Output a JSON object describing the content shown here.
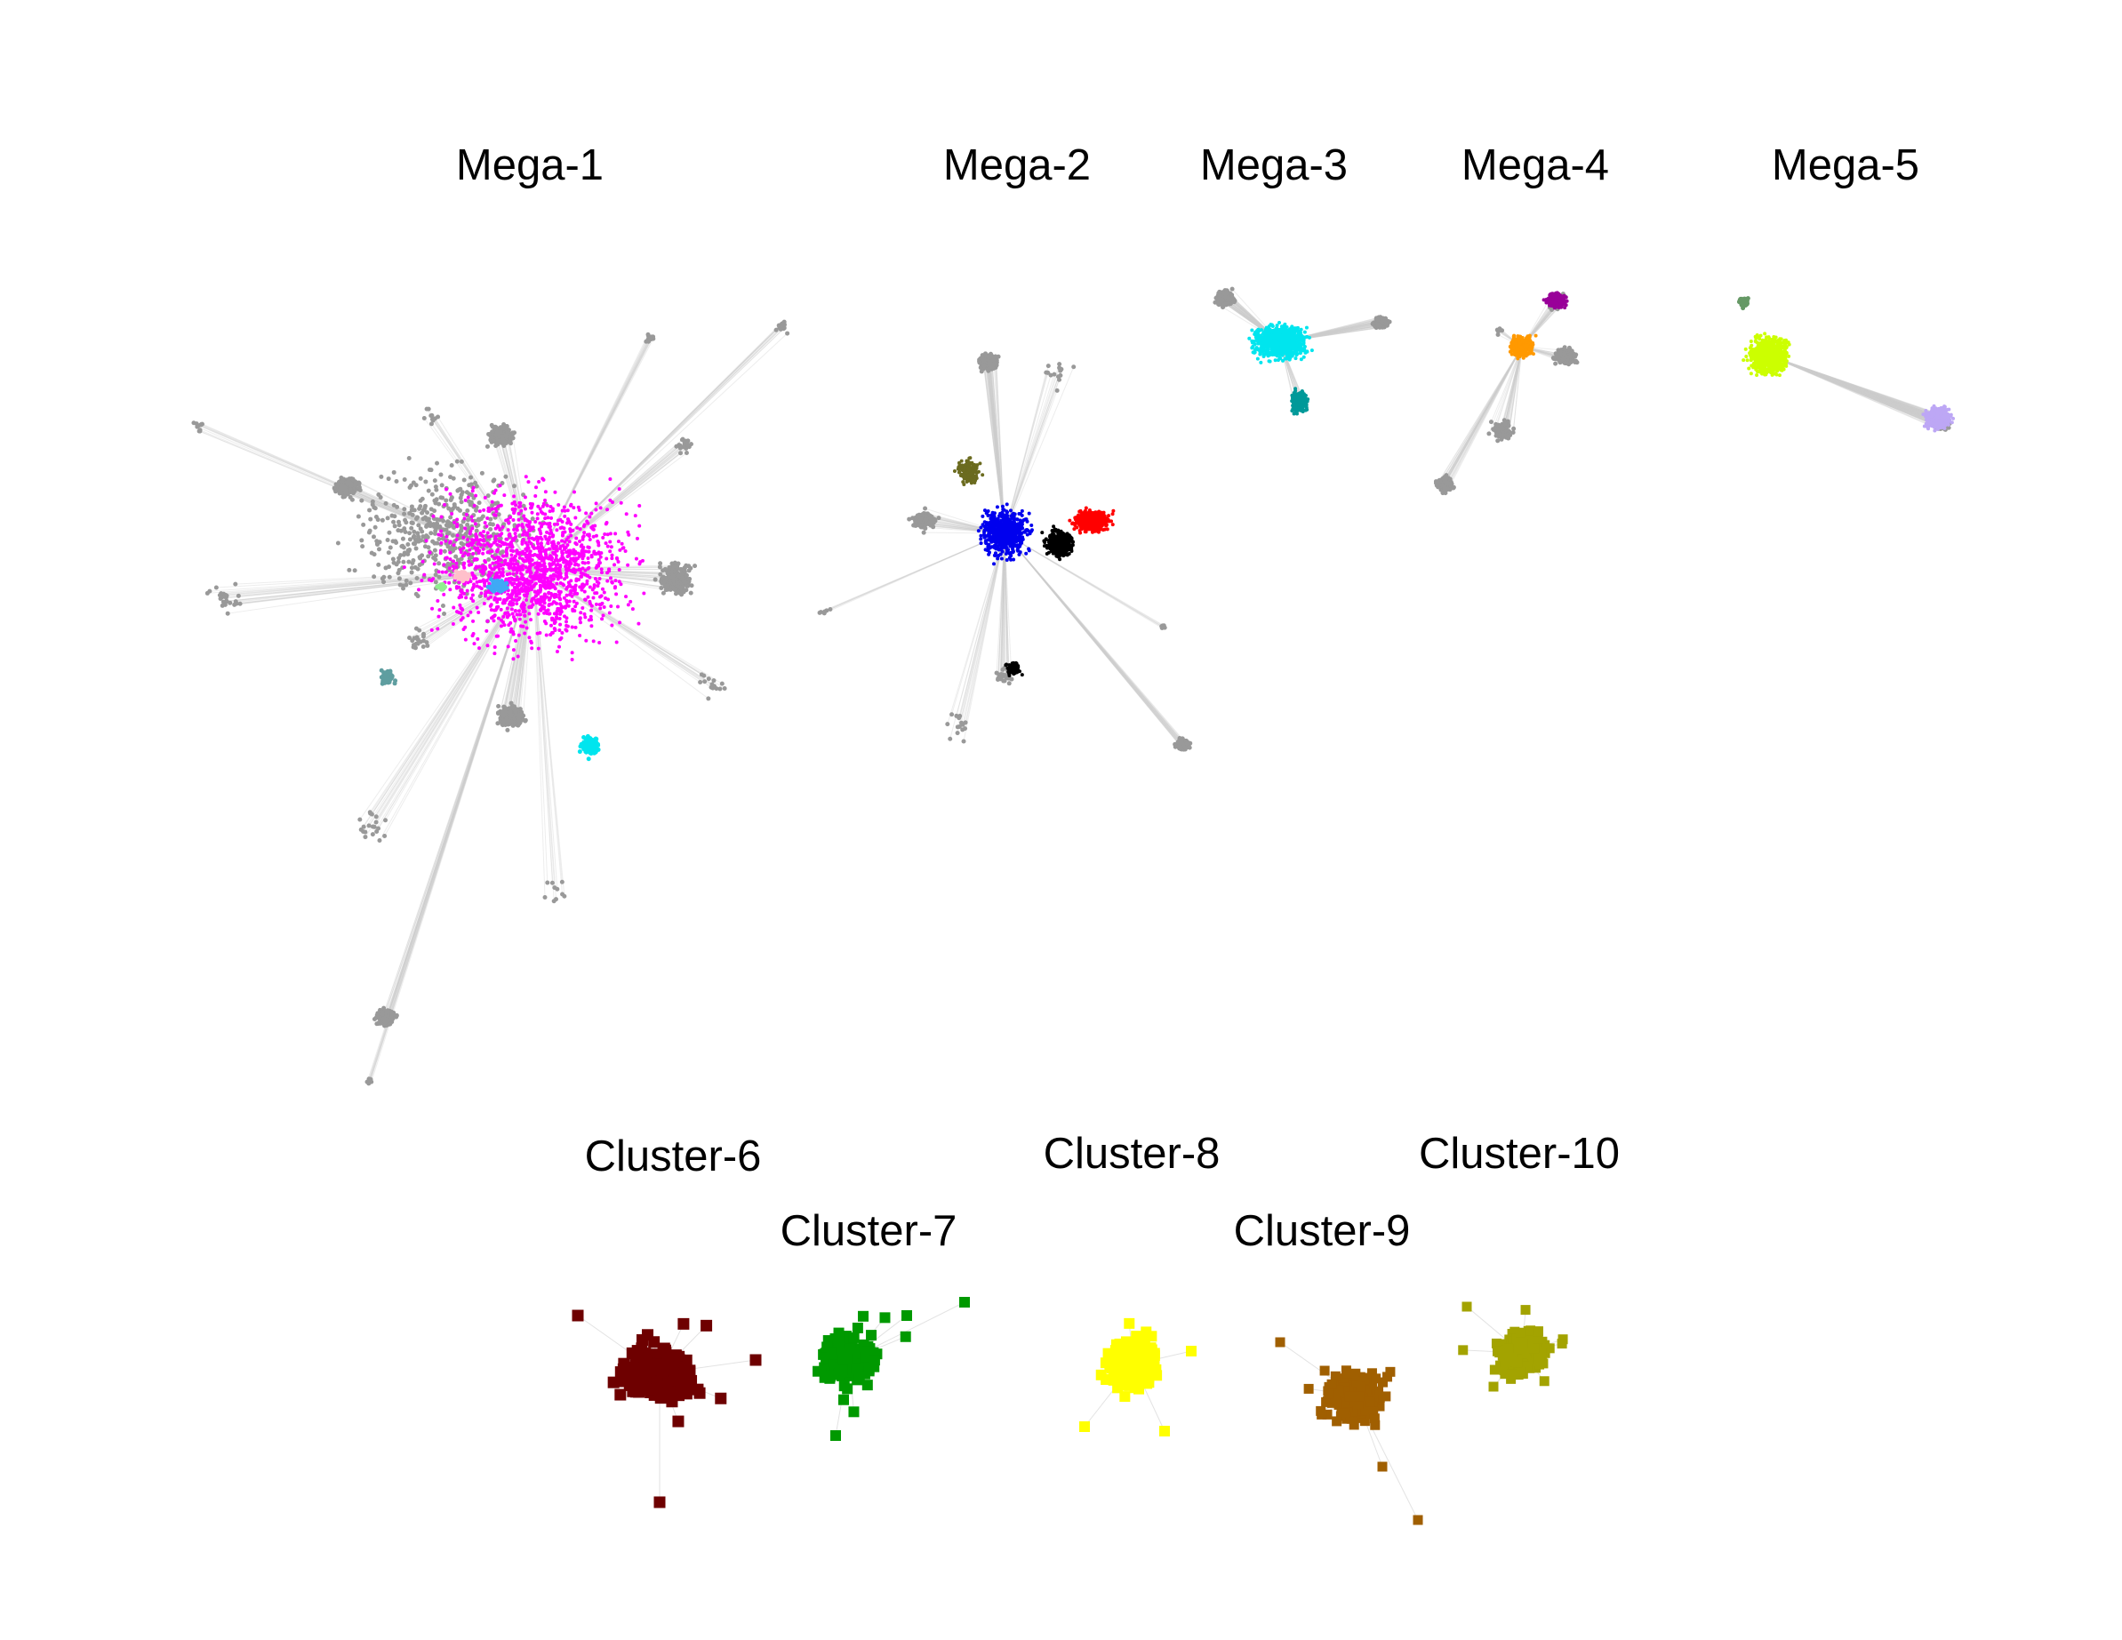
{
  "figure": {
    "background": "#ffffff",
    "node_color_default": "#999999",
    "edge_color": "#cccccc",
    "mega_clusters": [
      {
        "label": "Mega-1",
        "communities": [
          {
            "color": "#ff00ff"
          },
          {
            "color": "#00e5ee"
          },
          {
            "color": "#3fa9f5"
          },
          {
            "color": "#ffc0cb"
          },
          {
            "color": "#90ee90"
          },
          {
            "color": "#5f9ea0"
          }
        ]
      },
      {
        "label": "Mega-2",
        "communities": [
          {
            "color": "#0000ee"
          },
          {
            "color": "#ff0000"
          },
          {
            "color": "#000000"
          },
          {
            "color": "#6b6b1f"
          }
        ]
      },
      {
        "label": "Mega-3",
        "communities": [
          {
            "color": "#00e5ee"
          },
          {
            "color": "#009999"
          }
        ]
      },
      {
        "label": "Mega-4",
        "communities": [
          {
            "color": "#990099"
          },
          {
            "color": "#ff9900"
          }
        ]
      },
      {
        "label": "Mega-5",
        "communities": [
          {
            "color": "#ccff00"
          },
          {
            "color": "#bda7f5"
          },
          {
            "color": "#669966"
          }
        ]
      }
    ],
    "clusters": [
      {
        "label": "Cluster-6",
        "color": "#6e0000"
      },
      {
        "label": "Cluster-7",
        "color": "#009900"
      },
      {
        "label": "Cluster-8",
        "color": "#ffff00"
      },
      {
        "label": "Cluster-9",
        "color": "#a05f00"
      },
      {
        "label": "Cluster-10",
        "color": "#a3a300"
      }
    ]
  }
}
